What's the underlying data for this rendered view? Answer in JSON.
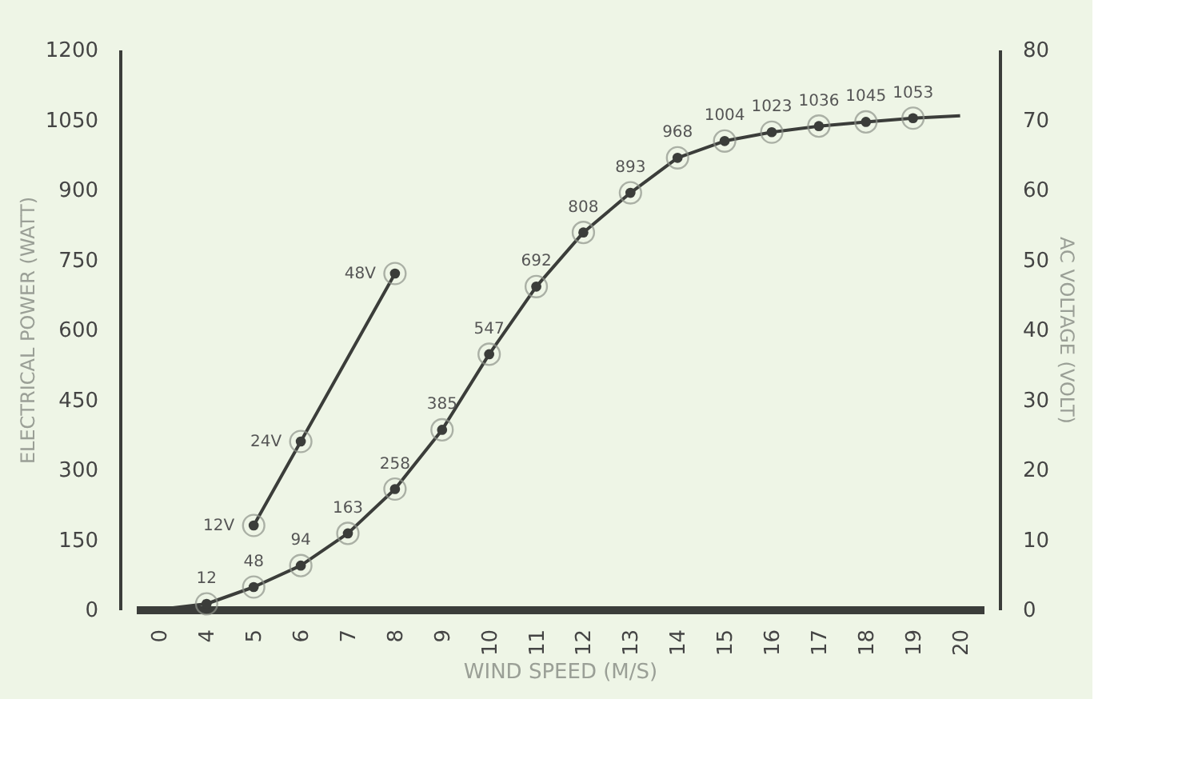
{
  "chart_data": {
    "type": "line",
    "xlabel": "WIND SPEED (M/S)",
    "ylabel": "ELECTRICAL POWER (WATT)",
    "y2label": "AC VOLTAGE (VOLT)",
    "categories": [
      "0",
      "4",
      "5",
      "6",
      "7",
      "8",
      "9",
      "10",
      "11",
      "12",
      "13",
      "14",
      "15",
      "16",
      "17",
      "18",
      "19",
      "20"
    ],
    "series": [
      {
        "values": [
          0,
          12,
          48,
          94,
          163,
          258,
          385,
          547,
          692,
          808,
          893,
          968,
          1004,
          1023,
          1036,
          1045,
          1053,
          1058
        ],
        "color": "#3b3d3a",
        "value_labels": [
          null,
          "12",
          "48",
          "94",
          "163",
          "258",
          "385",
          "547",
          "692",
          "808",
          "893",
          "968",
          "1004",
          "1023",
          "1036",
          "1045",
          "1053",
          null
        ]
      },
      {
        "values": [
          null,
          null,
          12,
          24,
          null,
          48,
          null,
          null,
          null,
          null,
          null,
          null,
          null,
          null,
          null,
          null,
          null,
          null
        ],
        "color": "#3b3d3a",
        "axis": "y2",
        "value_labels": [
          null,
          null,
          "12V",
          "24V",
          null,
          "48V",
          null,
          null,
          null,
          null,
          null,
          null,
          null,
          null,
          null,
          null,
          null,
          null
        ]
      }
    ],
    "ylim": [
      0,
      1200
    ],
    "yticks": [
      0,
      150,
      300,
      450,
      600,
      750,
      900,
      1050,
      1200
    ],
    "y2lim": [
      0,
      80
    ],
    "y2ticks": [
      0,
      10,
      20,
      30,
      40,
      50,
      60,
      70,
      80
    ],
    "marker": "circle",
    "line_style": "solid",
    "grid": false
  }
}
